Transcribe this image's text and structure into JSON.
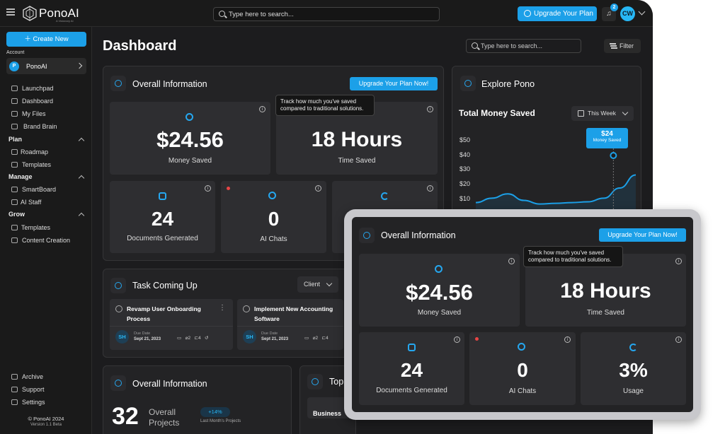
{
  "topbar": {
    "brand": "PonoAI",
    "brand_sub": "A Visionary AI",
    "search_placeholder": "Type here to search...",
    "upgrade_label": "Upgrade Your Plan",
    "notif_count": "2",
    "avatar_initials": "CW"
  },
  "sidebar": {
    "create_label": "Create New",
    "account_label": "Account",
    "account_initial": "P",
    "account_name": "PonoAI",
    "items": [
      {
        "label": "Launchpad"
      },
      {
        "label": "Dashboard"
      },
      {
        "label": "My Files"
      },
      {
        "label": "Brand Brain"
      },
      {
        "label": "Roadmap"
      },
      {
        "label": "Templates"
      },
      {
        "label": "SmartBoard"
      },
      {
        "label": "AI Staff"
      },
      {
        "label": "Templates"
      },
      {
        "label": "Content Creation"
      },
      {
        "label": "Archive"
      },
      {
        "label": "Support"
      },
      {
        "label": "Settings"
      }
    ],
    "sections": [
      "Plan",
      "Manage",
      "Grow"
    ],
    "copyright": "© PonoAI 2024",
    "version": "Version 1.1 Beta"
  },
  "main": {
    "title": "Dashboard",
    "search_placeholder": "Type here to search...",
    "filter_label": "Filter",
    "overall": {
      "title": "Overall Information",
      "upgrade_label": "Upgrade Your Plan Now!",
      "tooltip": "Track how much you've saved compared to traditional solutions.",
      "money_value": "$24.56",
      "money_label": "Money Saved",
      "time_value": "18 Hours",
      "time_label": "Time Saved",
      "docs_value": "24",
      "docs_label": "Documents Generated",
      "chats_value": "0",
      "chats_label": "AI Chats",
      "usage_value": "3%",
      "usage_label": "Usage"
    },
    "explore": {
      "title": "Explore Pono",
      "chart_title": "Total Money Saved",
      "range": "This Week",
      "marker_value": "$24",
      "marker_label": "Money Saved"
    },
    "tasks": {
      "title": "Task Coming Up",
      "filter": "Client",
      "items": [
        {
          "title": "Revamp User Onboarding Process",
          "initials": "SH",
          "due_label": "Due Date",
          "due": "Sept 21, 2023",
          "comments": "",
          "attachments": "2",
          "subtasks": "4"
        },
        {
          "title": "Implement New Accounting Software",
          "initials": "SH",
          "due_label": "Due Date",
          "due": "Sept 21, 2023",
          "comments": "",
          "attachments": "2",
          "subtasks": "4"
        }
      ]
    },
    "overall2": {
      "title": "Overall Information",
      "projects_value": "32",
      "projects_label": "Overall Projects",
      "delta": "+14%",
      "delta_label": "Last Month's Projects"
    },
    "top": {
      "title": "Top",
      "row": "Business"
    }
  },
  "chart_data": {
    "type": "area",
    "title": "Total Money Saved",
    "ylabel": "",
    "yticks": [
      "$50",
      "$40",
      "$30",
      "$20",
      "$10"
    ],
    "ylim": [
      0,
      50
    ],
    "x": [
      0,
      1,
      2,
      3,
      4,
      5,
      6,
      7,
      8,
      9,
      10
    ],
    "values": [
      7,
      10,
      13,
      8.5,
      6,
      6.5,
      7,
      7.5,
      10,
      17,
      26
    ],
    "annotation": {
      "value": "$24",
      "label": "Money Saved"
    },
    "accent": "#1ca0e8"
  }
}
